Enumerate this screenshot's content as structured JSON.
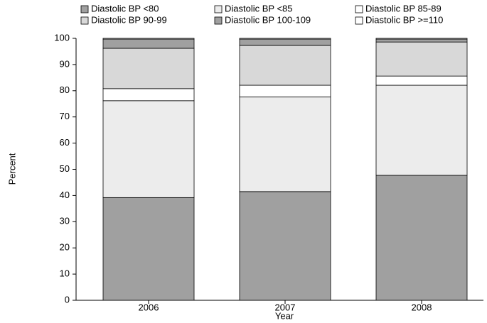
{
  "chart_data": {
    "type": "stacked-bar",
    "x_label": "Year",
    "y_label": "Percent",
    "categories": [
      "2006",
      "2007",
      "2008"
    ],
    "series": [
      {
        "name": "Diastolic BP <80",
        "color": "#a0a0a0",
        "values": [
          39.2,
          41.5,
          47.7
        ]
      },
      {
        "name": "Diastolic BP <85",
        "color": "#ececec",
        "values": [
          37.0,
          36.1,
          34.4
        ]
      },
      {
        "name": "Diastolic BP 85-89",
        "color": "#ffffff",
        "values": [
          4.6,
          4.5,
          3.5
        ]
      },
      {
        "name": "Diastolic BP 90-99",
        "color": "#d8d8d8",
        "values": [
          15.4,
          15.2,
          13.0
        ]
      },
      {
        "name": "Diastolic BP 100-109",
        "color": "#a0a0a0",
        "values": [
          3.5,
          2.4,
          1.1
        ]
      },
      {
        "name": "Diastolic BP >=110",
        "color": "#ffffff",
        "values": [
          0.3,
          0.3,
          0.3
        ]
      }
    ],
    "ylim": [
      0,
      100
    ],
    "yticks": [
      0,
      10,
      20,
      30,
      40,
      50,
      60,
      70,
      80,
      90,
      100
    ]
  }
}
